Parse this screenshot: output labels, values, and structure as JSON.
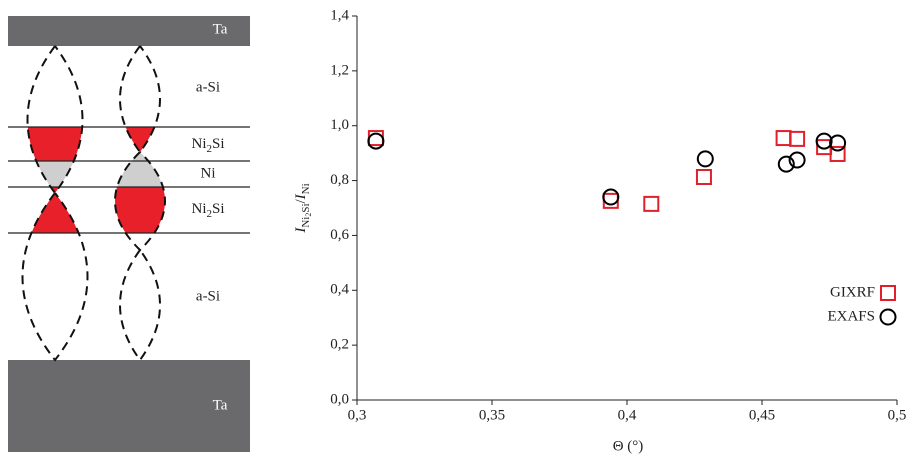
{
  "diagram": {
    "layers": [
      "Ta",
      "a-Si",
      [
        "Ni",
        "2",
        "Si"
      ],
      "Ni",
      [
        "Ni",
        "2",
        "Si"
      ],
      "a-Si",
      "Ta"
    ]
  },
  "chart_data": {
    "type": "scatter",
    "xlabel": "Θ (°)",
    "ylabel": [
      "I",
      "Ni",
      "2",
      "Si",
      "/",
      "I",
      "Ni"
    ],
    "xlim": [
      0.3,
      0.5
    ],
    "ylim": [
      0.0,
      1.4
    ],
    "xticks": [
      {
        "value": 0.3,
        "label": "0,3"
      },
      {
        "value": 0.35,
        "label": "0,35"
      },
      {
        "value": 0.4,
        "label": "0,4"
      },
      {
        "value": 0.45,
        "label": "0,45"
      },
      {
        "value": 0.5,
        "label": "0,5"
      }
    ],
    "yticks": [
      {
        "value": 0.0,
        "label": "0,0"
      },
      {
        "value": 0.2,
        "label": "0,2"
      },
      {
        "value": 0.4,
        "label": "0,4"
      },
      {
        "value": 0.6,
        "label": "0,6"
      },
      {
        "value": 0.8,
        "label": "0,8"
      },
      {
        "value": 1.0,
        "label": "1,0"
      },
      {
        "value": 1.2,
        "label": "1,2"
      },
      {
        "value": 1.4,
        "label": "1,4"
      }
    ],
    "legend": "lower right",
    "series": [
      {
        "name": "GIXRF",
        "color": "#e0202a",
        "marker": "square",
        "x": [
          0.307,
          0.394,
          0.409,
          0.4285,
          0.458,
          0.463,
          0.473,
          0.478
        ],
        "values": [
          0.955,
          0.726,
          0.715,
          0.813,
          0.955,
          0.952,
          0.922,
          0.897
        ]
      },
      {
        "name": "EXAFS",
        "color": "#000000",
        "marker": "circle",
        "x": [
          0.307,
          0.394,
          0.429,
          0.459,
          0.463,
          0.473,
          0.478
        ],
        "values": [
          0.944,
          0.74,
          0.879,
          0.86,
          0.875,
          0.944,
          0.937
        ]
      }
    ]
  }
}
